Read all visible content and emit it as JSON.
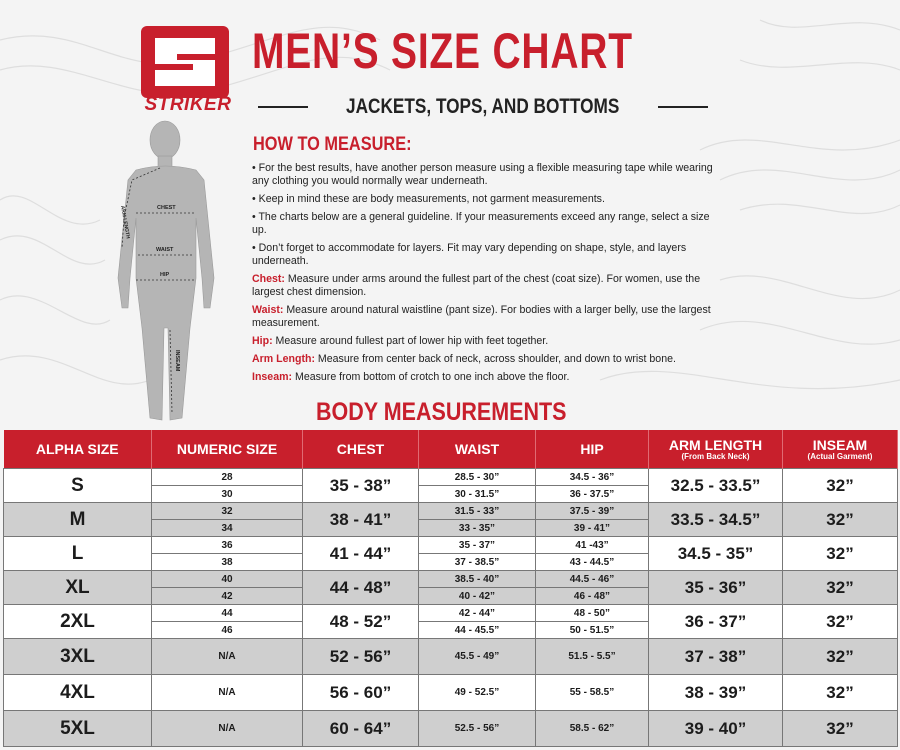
{
  "brand": {
    "name": "STRIKER",
    "logo_letter": "S"
  },
  "title": "MEN’S SIZE CHART",
  "subtitle": "JACKETS, TOPS, AND BOTTOMS",
  "figure_labels": {
    "chest": "CHEST",
    "arm": "ARM LENGTH",
    "waist": "WAIST",
    "hip": "HIP",
    "inseam": "INSEAM"
  },
  "how_to": {
    "heading": "HOW TO MEASURE:",
    "bullets": [
      "• For the best results, have another person measure using a flexible measuring tape while wearing any clothing you would normally wear underneath.",
      "• Keep in mind these are body measurements, not garment measurements.",
      "• The charts below are a general guideline. If your measurements exceed any range, select a size up.",
      "• Don’t forget to accommodate for layers. Fit may vary depending on shape, style, and layers underneath."
    ],
    "definitions": [
      {
        "label": "Chest:",
        "text": " Measure under arms around the fullest part of the chest (coat size).  For women, use the largest chest dimension."
      },
      {
        "label": "Waist:",
        "text": " Measure around natural waistline (pant size). For bodies with a larger belly, use the largest measurement."
      },
      {
        "label": "Hip:",
        "text": " Measure around fullest part of lower hip with feet together."
      },
      {
        "label": "Arm Length:",
        "text": " Measure from center back of neck, across shoulder, and down to wrist bone."
      },
      {
        "label": "Inseam:",
        "text": " Measure from bottom of crotch to one inch above the floor."
      }
    ]
  },
  "body_heading": "BODY MEASUREMENTS",
  "table": {
    "headers": {
      "alpha": "ALPHA SIZE",
      "numeric": "NUMERIC SIZE",
      "chest": "CHEST",
      "waist": "WAIST",
      "hip": "HIP",
      "arm": "ARM LENGTH",
      "arm_sub": "(From Back Neck)",
      "inseam": "INSEAM",
      "inseam_sub": "(Actual Garment)"
    },
    "rows": [
      {
        "alpha": "S",
        "numeric": [
          "28",
          "30"
        ],
        "chest": "35 - 38”",
        "waist": [
          "28.5 - 30”",
          "30 - 31.5”"
        ],
        "hip": [
          "34.5 - 36”",
          "36 - 37.5”"
        ],
        "arm": "32.5 - 33.5”",
        "inseam": "32”"
      },
      {
        "alpha": "M",
        "numeric": [
          "32",
          "34"
        ],
        "chest": "38 - 41”",
        "waist": [
          "31.5 - 33”",
          "33 - 35”"
        ],
        "hip": [
          "37.5 - 39”",
          "39 - 41”"
        ],
        "arm": "33.5 - 34.5”",
        "inseam": "32”"
      },
      {
        "alpha": "L",
        "numeric": [
          "36",
          "38"
        ],
        "chest": "41 - 44”",
        "waist": [
          "35 - 37”",
          "37 - 38.5”"
        ],
        "hip": [
          "41 -43”",
          "43 - 44.5”"
        ],
        "arm": "34.5 - 35”",
        "inseam": "32”"
      },
      {
        "alpha": "XL",
        "numeric": [
          "40",
          "42"
        ],
        "chest": "44 - 48”",
        "waist": [
          "38.5 - 40”",
          "40 - 42”"
        ],
        "hip": [
          "44.5 - 46”",
          "46 - 48”"
        ],
        "arm": "35 - 36”",
        "inseam": "32”"
      },
      {
        "alpha": "2XL",
        "numeric": [
          "44",
          "46"
        ],
        "chest": "48 - 52”",
        "waist": [
          "42 - 44”",
          "44 - 45.5”"
        ],
        "hip": [
          "48 - 50”",
          "50 - 51.5”"
        ],
        "arm": "36 - 37”",
        "inseam": "32”"
      },
      {
        "alpha": "3XL",
        "numeric": [
          "N/A"
        ],
        "chest": "52 - 56”",
        "waist": [
          "45.5 - 49”"
        ],
        "hip": [
          "51.5 - 5.5”"
        ],
        "arm": "37 - 38”",
        "inseam": "32”"
      },
      {
        "alpha": "4XL",
        "numeric": [
          "N/A"
        ],
        "chest": "56 - 60”",
        "waist": [
          "49 - 52.5”"
        ],
        "hip": [
          "55 - 58.5”"
        ],
        "arm": "38 - 39”",
        "inseam": "32”"
      },
      {
        "alpha": "5XL",
        "numeric": [
          "N/A"
        ],
        "chest": "60 - 64”",
        "waist": [
          "52.5 - 56”"
        ],
        "hip": [
          "58.5 - 62”"
        ],
        "arm": "39 - 40”",
        "inseam": "32”"
      }
    ]
  },
  "colors": {
    "brand_red": "#c81f2c",
    "row_gray": "#cfcfcf",
    "row_white": "#ffffff"
  }
}
